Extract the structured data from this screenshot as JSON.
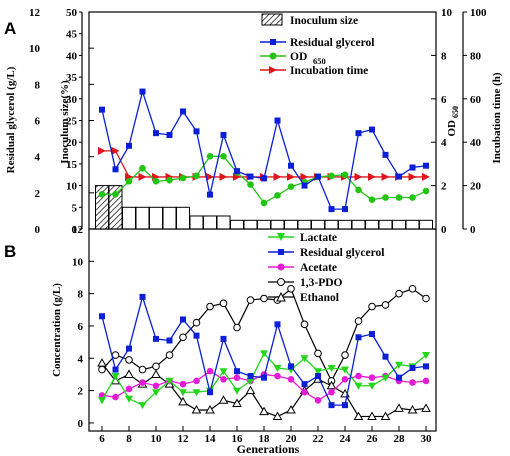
{
  "colors": {
    "glycerol": "#0a1fd6",
    "od": "#22c414",
    "incubation": "#e0141c",
    "lactate": "#22d61a",
    "acetate": "#e51bd6",
    "pdo": "#000000",
    "ethanol": "#000000",
    "inoculum_fill": "#ffffff"
  },
  "chart_data": [
    {
      "type": "bar+line",
      "panel_label": "A",
      "x_ticks": [
        "6",
        "8",
        "10",
        "12",
        "14",
        "16",
        "18",
        "20",
        "22",
        "24",
        "26",
        "28",
        "30"
      ],
      "left_axis": {
        "label": "Residual glycerol (g/L)",
        "range": [
          0,
          12
        ],
        "ticks": [
          "0",
          "2",
          "4",
          "6",
          "8",
          "10",
          "12"
        ]
      },
      "inner_axis": {
        "label": "Inoculum size(%)",
        "range": [
          0,
          50
        ],
        "ticks": [
          "0",
          "5",
          "10",
          "15",
          "20",
          "25",
          "30",
          "35",
          "40",
          "45",
          "50"
        ]
      },
      "right_axis1": {
        "label": "OD650",
        "range": [
          0,
          10
        ],
        "ticks": [
          "0",
          "2",
          "4",
          "6",
          "8",
          "10"
        ]
      },
      "right_axis2": {
        "label": "Incubation time (h)",
        "range": [
          0,
          100
        ],
        "ticks": [
          "0",
          "20",
          "40",
          "60",
          "80",
          "100"
        ]
      },
      "x": [
        6,
        7,
        8,
        9,
        10,
        11,
        12,
        13,
        14,
        15,
        16,
        17,
        18,
        19,
        20,
        21,
        22,
        23,
        24,
        25,
        26,
        27,
        28,
        29,
        30
      ],
      "legend": [
        {
          "key": "inoculum",
          "label": "Inoculum size"
        },
        {
          "key": "glycerol",
          "label": "Residual glycerol"
        },
        {
          "key": "od",
          "label": "OD650"
        },
        {
          "key": "incubation",
          "label": "Incubation time"
        }
      ],
      "series": [
        {
          "name": "Inoculum size",
          "axis": "inner",
          "style": "bar",
          "values": [
            10,
            10,
            5,
            5,
            5,
            5,
            5,
            3,
            3,
            3,
            2,
            2,
            2,
            2,
            2,
            2,
            2,
            2,
            2,
            2,
            2,
            2,
            2,
            2,
            2
          ]
        },
        {
          "name": "Residual glycerol",
          "axis": "left",
          "values": [
            6.6,
            3.3,
            4.6,
            7.6,
            5.3,
            5.2,
            6.5,
            5.4,
            1.9,
            5.2,
            3.2,
            2.9,
            2.8,
            6.0,
            3.5,
            2.4,
            2.9,
            1.1,
            1.1,
            5.3,
            5.5,
            4.1,
            2.9,
            3.4,
            3.5
          ]
        },
        {
          "name": "OD650",
          "axis": "right1",
          "values": [
            1.6,
            1.6,
            2.2,
            2.8,
            2.2,
            2.25,
            2.35,
            2.45,
            3.35,
            3.35,
            2.6,
            2.05,
            1.2,
            1.55,
            1.95,
            2.15,
            2.4,
            2.45,
            2.5,
            1.8,
            1.35,
            1.45,
            1.45,
            1.45,
            1.75
          ]
        },
        {
          "name": "Incubation time",
          "axis": "right2",
          "values": [
            36,
            36,
            24,
            24,
            24,
            24,
            24,
            24,
            24,
            24,
            24,
            24,
            24,
            24,
            24,
            24,
            24,
            24,
            24,
            24,
            24,
            24,
            24,
            24,
            24
          ]
        }
      ]
    },
    {
      "type": "line",
      "panel_label": "B",
      "xlabel": "Generations",
      "ylabel": "Concentration (g/L)",
      "ylim": [
        -0.5,
        12
      ],
      "y_ticks": [
        "0",
        "2",
        "4",
        "6",
        "8",
        "10",
        "12"
      ],
      "x_ticks": [
        "6",
        "8",
        "10",
        "12",
        "14",
        "16",
        "18",
        "20",
        "22",
        "24",
        "26",
        "28",
        "30"
      ],
      "x": [
        6,
        7,
        8,
        9,
        10,
        11,
        12,
        13,
        14,
        15,
        16,
        17,
        18,
        19,
        20,
        21,
        22,
        23,
        24,
        25,
        26,
        27,
        28,
        29,
        30
      ],
      "legend": [
        {
          "key": "lactate",
          "label": "Lactate"
        },
        {
          "key": "glycerol",
          "label": "Residual glycerol"
        },
        {
          "key": "acetate",
          "label": "Acetate"
        },
        {
          "key": "pdo",
          "label": "1,3-PDO"
        },
        {
          "key": "ethanol",
          "label": "Ethanol"
        }
      ],
      "series": [
        {
          "name": "Lactate",
          "values": [
            1.4,
            2.9,
            1.5,
            1.1,
            1.9,
            2.6,
            1.9,
            1.9,
            2.0,
            3.2,
            2.0,
            2.6,
            4.3,
            3.4,
            3.3,
            4.0,
            3.2,
            3.4,
            3.3,
            2.3,
            2.3,
            2.8,
            3.6,
            3.5,
            4.2
          ]
        },
        {
          "name": "Residual glycerol",
          "values": [
            6.6,
            3.3,
            4.6,
            7.8,
            5.2,
            5.1,
            6.4,
            5.4,
            1.9,
            5.2,
            3.2,
            2.9,
            2.8,
            6.1,
            3.5,
            2.4,
            2.9,
            1.1,
            1.1,
            5.3,
            5.5,
            4.1,
            2.8,
            3.4,
            3.5
          ]
        },
        {
          "name": "Acetate",
          "values": [
            1.7,
            1.6,
            2.1,
            2.5,
            2.3,
            2.6,
            2.4,
            2.6,
            3.2,
            2.7,
            2.8,
            2.6,
            3.0,
            2.9,
            2.7,
            1.9,
            1.4,
            1.9,
            2.7,
            2.9,
            2.8,
            2.9,
            2.6,
            2.5,
            2.6
          ]
        },
        {
          "name": "1,3-PDO",
          "values": [
            3.3,
            4.2,
            3.9,
            3.3,
            3.5,
            4.2,
            5.3,
            6.2,
            7.2,
            7.4,
            5.9,
            7.6,
            7.7,
            7.6,
            8.3,
            6.1,
            4.3,
            2.6,
            4.2,
            6.3,
            7.2,
            7.3,
            8.0,
            8.3,
            7.7
          ]
        },
        {
          "name": "Ethanol",
          "values": [
            3.7,
            2.6,
            3.0,
            2.4,
            3.0,
            2.4,
            1.3,
            0.8,
            0.8,
            1.4,
            1.2,
            2.0,
            0.7,
            0.4,
            0.8,
            2.0,
            2.7,
            2.3,
            1.8,
            0.4,
            0.4,
            0.4,
            0.9,
            0.8,
            0.9
          ]
        }
      ]
    }
  ],
  "text": {
    "panelA": "A",
    "panelB": "B",
    "legA": [
      "Inoculum size",
      "Residual glycerol",
      "OD",
      "650",
      "Incubation time"
    ],
    "legB": [
      "Lactate",
      "Residual glycerol",
      "Acetate",
      "1,3-PDO",
      "Ethanol"
    ],
    "axA_left": "Residual glycerol (g/L)",
    "axA_inner": "Inoculum size(%)",
    "axA_right1_main": "OD",
    "axA_right1_sub": "650",
    "axA_right2": "Incubation time (h)",
    "axB_left": "Concentration (g/L)",
    "axB_bottom": "Generations"
  }
}
